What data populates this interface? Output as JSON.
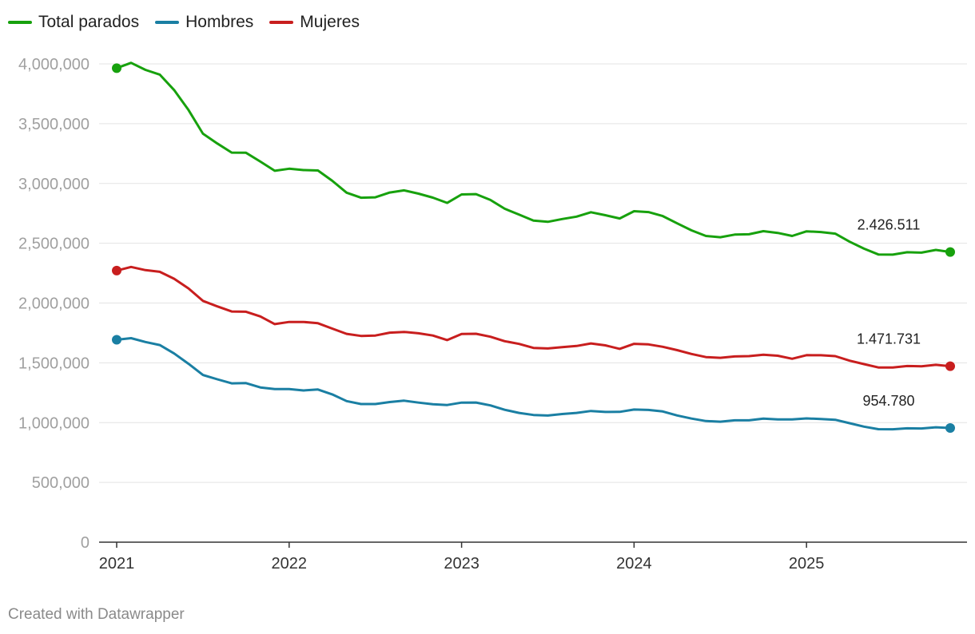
{
  "chart_data": {
    "type": "line",
    "x": [
      "2021-01",
      "2021-02",
      "2021-03",
      "2021-04",
      "2021-05",
      "2021-06",
      "2021-07",
      "2021-08",
      "2021-09",
      "2021-10",
      "2021-11",
      "2021-12",
      "2022-01",
      "2022-02",
      "2022-03",
      "2022-04",
      "2022-05",
      "2022-06",
      "2022-07",
      "2022-08",
      "2022-09",
      "2022-10",
      "2022-11",
      "2022-12",
      "2023-01",
      "2023-02",
      "2023-03",
      "2023-04",
      "2023-05",
      "2023-06",
      "2023-07",
      "2023-08",
      "2023-09",
      "2023-10",
      "2023-11",
      "2023-12",
      "2024-01",
      "2024-02",
      "2024-03",
      "2024-04",
      "2024-05",
      "2024-06",
      "2024-07",
      "2024-08",
      "2024-09",
      "2024-10",
      "2024-11",
      "2024-12",
      "2025-01",
      "2025-02",
      "2025-03",
      "2025-04",
      "2025-05",
      "2025-06",
      "2025-07",
      "2025-08",
      "2025-09",
      "2025-10",
      "2025-11"
    ],
    "series": [
      {
        "name": "Total parados",
        "color": "#17a10d",
        "values": [
          3964353,
          4008789,
          3949640,
          3910628,
          3781250,
          3614339,
          3416498,
          3333915,
          3257802,
          3257068,
          3182687,
          3105905,
          3123078,
          3111684,
          3108763,
          3022503,
          2922991,
          2880582,
          2883812,
          2924240,
          2941919,
          2914892,
          2881380,
          2837653,
          2908397,
          2911015,
          2862260,
          2788370,
          2739110,
          2688842,
          2678960,
          2702700,
          2722468,
          2759404,
          2734831,
          2707456,
          2767860,
          2760408,
          2727003,
          2666500,
          2607850,
          2561067,
          2550237,
          2572121,
          2575285,
          2601326,
          2586018,
          2560718,
          2599443,
          2593449,
          2580138,
          2512718,
          2454883,
          2405963,
          2404606,
          2424963,
          2421665,
          2443766,
          2426511
        ]
      },
      {
        "name": "Hombres",
        "color": "#1a7fa3",
        "values": [
          1693000,
          1706000,
          1674000,
          1649000,
          1578000,
          1492000,
          1398000,
          1362000,
          1328000,
          1330000,
          1294000,
          1281000,
          1281000,
          1269000,
          1277000,
          1236000,
          1180000,
          1155000,
          1155000,
          1172000,
          1183000,
          1167000,
          1153000,
          1147000,
          1167000,
          1168000,
          1144000,
          1107000,
          1081000,
          1064000,
          1059000,
          1072000,
          1081000,
          1097000,
          1089000,
          1090000,
          1109000,
          1106000,
          1093000,
          1060000,
          1034000,
          1013000,
          1008000,
          1019000,
          1019000,
          1033000,
          1027000,
          1027000,
          1035000,
          1030000,
          1024000,
          995000,
          966000,
          945000,
          944000,
          952000,
          951000,
          961000,
          954780
        ]
      },
      {
        "name": "Mujeres",
        "color": "#c81e1e",
        "values": [
          2271000,
          2302000,
          2275000,
          2261000,
          2203000,
          2122000,
          2018000,
          1972000,
          1929000,
          1927000,
          1888000,
          1824000,
          1842000,
          1842000,
          1831000,
          1786000,
          1742000,
          1725000,
          1728000,
          1752000,
          1758000,
          1747000,
          1728000,
          1690000,
          1741000,
          1743000,
          1718000,
          1681000,
          1658000,
          1625000,
          1620000,
          1631000,
          1641000,
          1662000,
          1646000,
          1617000,
          1659000,
          1654000,
          1634000,
          1606000,
          1574000,
          1548000,
          1542000,
          1553000,
          1556000,
          1568000,
          1559000,
          1534000,
          1564000,
          1563000,
          1556000,
          1518000,
          1489000,
          1461000,
          1461000,
          1473000,
          1471000,
          1483000,
          1471731
        ]
      }
    ],
    "end_labels": [
      "2.426.511",
      "954.780",
      "1.471.731"
    ],
    "y_ticks": [
      0,
      500000,
      1000000,
      1500000,
      2000000,
      2500000,
      3000000,
      3500000,
      4000000
    ],
    "y_tick_labels": [
      "0",
      "500,000",
      "1,000,000",
      "1,500,000",
      "2,000,000",
      "2,500,000",
      "3,000,000",
      "3,500,000",
      "4,000,000"
    ],
    "ylim": [
      0,
      4000000
    ],
    "x_tick_labels": [
      "2021",
      "2022",
      "2023",
      "2024",
      "2025"
    ],
    "grid": "horizontal",
    "legend_position": "top-left",
    "title": "",
    "xlabel": "",
    "ylabel": ""
  },
  "footer": "Created with Datawrapper",
  "colors": {
    "gridline": "#e3e3e3",
    "axis": "#333333",
    "tick_text": "#a0a0a0",
    "label_text": "#222222"
  }
}
